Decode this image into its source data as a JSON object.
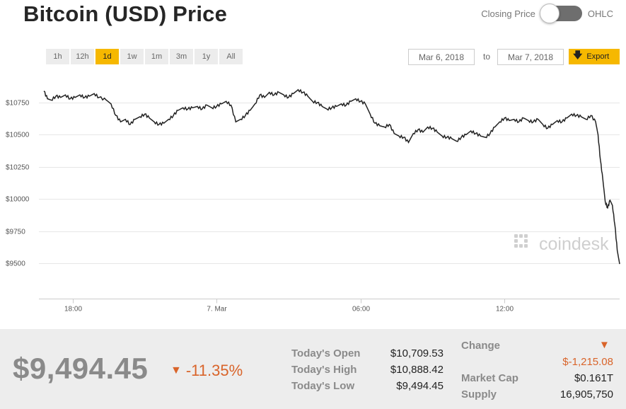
{
  "title": "Bitcoin (USD) Price",
  "toggle": {
    "left_label": "Closing Price",
    "right_label": "OHLC"
  },
  "ranges": [
    {
      "label": "1h",
      "active": false
    },
    {
      "label": "12h",
      "active": false
    },
    {
      "label": "1d",
      "active": true
    },
    {
      "label": "1w",
      "active": false
    },
    {
      "label": "1m",
      "active": false
    },
    {
      "label": "3m",
      "active": false
    },
    {
      "label": "1y",
      "active": false
    },
    {
      "label": "All",
      "active": false
    }
  ],
  "date_from": "Mar 6, 2018",
  "date_to_label": "to",
  "date_to": "Mar 7, 2018",
  "export_label": "Export",
  "watermark": "coindesk",
  "colors": {
    "accent": "#f6b800",
    "line": "#222222",
    "negative": "#d9642a",
    "muted": "#8a8a8a"
  },
  "chart_data": {
    "type": "line",
    "ylim": [
      9400,
      10900
    ],
    "yticks": [
      9500,
      9750,
      10000,
      10250,
      10500,
      10750
    ],
    "ytick_labels": [
      "$9500",
      "$9750",
      "$10000",
      "$10250",
      "$10500",
      "$10750"
    ],
    "xlim": [
      0,
      24
    ],
    "xticks": [
      {
        "x": 1.2,
        "label": "18:00"
      },
      {
        "x": 7.2,
        "label": "7. Mar"
      },
      {
        "x": 13.2,
        "label": "06:00"
      },
      {
        "x": 19.2,
        "label": "12:00"
      }
    ],
    "grid": true,
    "series": [
      {
        "points": [
          [
            0.0,
            10840
          ],
          [
            0.15,
            10780
          ],
          [
            0.3,
            10770
          ],
          [
            0.5,
            10800
          ],
          [
            0.7,
            10790
          ],
          [
            0.9,
            10810
          ],
          [
            1.1,
            10780
          ],
          [
            1.3,
            10790
          ],
          [
            1.5,
            10810
          ],
          [
            1.7,
            10790
          ],
          [
            1.9,
            10800
          ],
          [
            2.1,
            10820
          ],
          [
            2.3,
            10790
          ],
          [
            2.6,
            10770
          ],
          [
            2.8,
            10740
          ],
          [
            3.0,
            10650
          ],
          [
            3.2,
            10600
          ],
          [
            3.4,
            10620
          ],
          [
            3.6,
            10580
          ],
          [
            3.8,
            10620
          ],
          [
            4.0,
            10640
          ],
          [
            4.2,
            10660
          ],
          [
            4.4,
            10630
          ],
          [
            4.6,
            10600
          ],
          [
            4.8,
            10580
          ],
          [
            5.0,
            10590
          ],
          [
            5.2,
            10620
          ],
          [
            5.4,
            10650
          ],
          [
            5.6,
            10690
          ],
          [
            5.8,
            10710
          ],
          [
            6.0,
            10700
          ],
          [
            6.2,
            10710
          ],
          [
            6.4,
            10720
          ],
          [
            6.6,
            10700
          ],
          [
            6.8,
            10730
          ],
          [
            7.0,
            10710
          ],
          [
            7.2,
            10720
          ],
          [
            7.4,
            10740
          ],
          [
            7.6,
            10760
          ],
          [
            7.8,
            10730
          ],
          [
            8.0,
            10600
          ],
          [
            8.2,
            10620
          ],
          [
            8.4,
            10650
          ],
          [
            8.6,
            10690
          ],
          [
            8.8,
            10740
          ],
          [
            9.0,
            10810
          ],
          [
            9.2,
            10790
          ],
          [
            9.4,
            10830
          ],
          [
            9.6,
            10810
          ],
          [
            9.8,
            10830
          ],
          [
            10.0,
            10810
          ],
          [
            10.2,
            10790
          ],
          [
            10.4,
            10820
          ],
          [
            10.6,
            10850
          ],
          [
            10.8,
            10830
          ],
          [
            11.0,
            10800
          ],
          [
            11.2,
            10760
          ],
          [
            11.4,
            10750
          ],
          [
            11.6,
            10720
          ],
          [
            11.8,
            10700
          ],
          [
            12.0,
            10710
          ],
          [
            12.2,
            10720
          ],
          [
            12.4,
            10740
          ],
          [
            12.6,
            10730
          ],
          [
            12.8,
            10760
          ],
          [
            13.0,
            10780
          ],
          [
            13.2,
            10760
          ],
          [
            13.4,
            10740
          ],
          [
            13.6,
            10660
          ],
          [
            13.8,
            10590
          ],
          [
            14.0,
            10570
          ],
          [
            14.2,
            10560
          ],
          [
            14.4,
            10580
          ],
          [
            14.6,
            10510
          ],
          [
            14.8,
            10490
          ],
          [
            15.0,
            10480
          ],
          [
            15.2,
            10440
          ],
          [
            15.4,
            10510
          ],
          [
            15.6,
            10540
          ],
          [
            15.8,
            10520
          ],
          [
            16.0,
            10560
          ],
          [
            16.2,
            10550
          ],
          [
            16.4,
            10520
          ],
          [
            16.6,
            10490
          ],
          [
            16.8,
            10480
          ],
          [
            17.0,
            10470
          ],
          [
            17.2,
            10450
          ],
          [
            17.4,
            10480
          ],
          [
            17.6,
            10500
          ],
          [
            17.8,
            10530
          ],
          [
            18.0,
            10510
          ],
          [
            18.2,
            10490
          ],
          [
            18.4,
            10480
          ],
          [
            18.6,
            10510
          ],
          [
            18.8,
            10560
          ],
          [
            19.0,
            10600
          ],
          [
            19.2,
            10630
          ],
          [
            19.4,
            10610
          ],
          [
            19.6,
            10620
          ],
          [
            19.8,
            10600
          ],
          [
            20.0,
            10630
          ],
          [
            20.2,
            10610
          ],
          [
            20.4,
            10600
          ],
          [
            20.6,
            10620
          ],
          [
            20.8,
            10580
          ],
          [
            21.0,
            10550
          ],
          [
            21.2,
            10580
          ],
          [
            21.4,
            10610
          ],
          [
            21.6,
            10600
          ],
          [
            21.8,
            10630
          ],
          [
            22.0,
            10660
          ],
          [
            22.2,
            10650
          ],
          [
            22.4,
            10640
          ],
          [
            22.6,
            10620
          ],
          [
            22.8,
            10650
          ],
          [
            23.0,
            10600
          ],
          [
            23.1,
            10500
          ],
          [
            23.2,
            10300
          ],
          [
            23.3,
            10150
          ],
          [
            23.4,
            9980
          ],
          [
            23.5,
            9930
          ],
          [
            23.6,
            9990
          ],
          [
            23.7,
            9950
          ],
          [
            23.8,
            9800
          ],
          [
            23.9,
            9600
          ],
          [
            24.0,
            9494
          ]
        ]
      }
    ]
  },
  "stats": {
    "price": "$9,494.45",
    "change_pct": "-11.35%",
    "todays_open_label": "Today's Open",
    "todays_open": "$10,709.53",
    "todays_high_label": "Today's High",
    "todays_high": "$10,888.42",
    "todays_low_label": "Today's Low",
    "todays_low": "$9,494.45",
    "change_label": "Change",
    "change_value": "$-1,215.08",
    "market_cap_label": "Market Cap",
    "market_cap": "$0.161T",
    "supply_label": "Supply",
    "supply": "16,905,750"
  }
}
